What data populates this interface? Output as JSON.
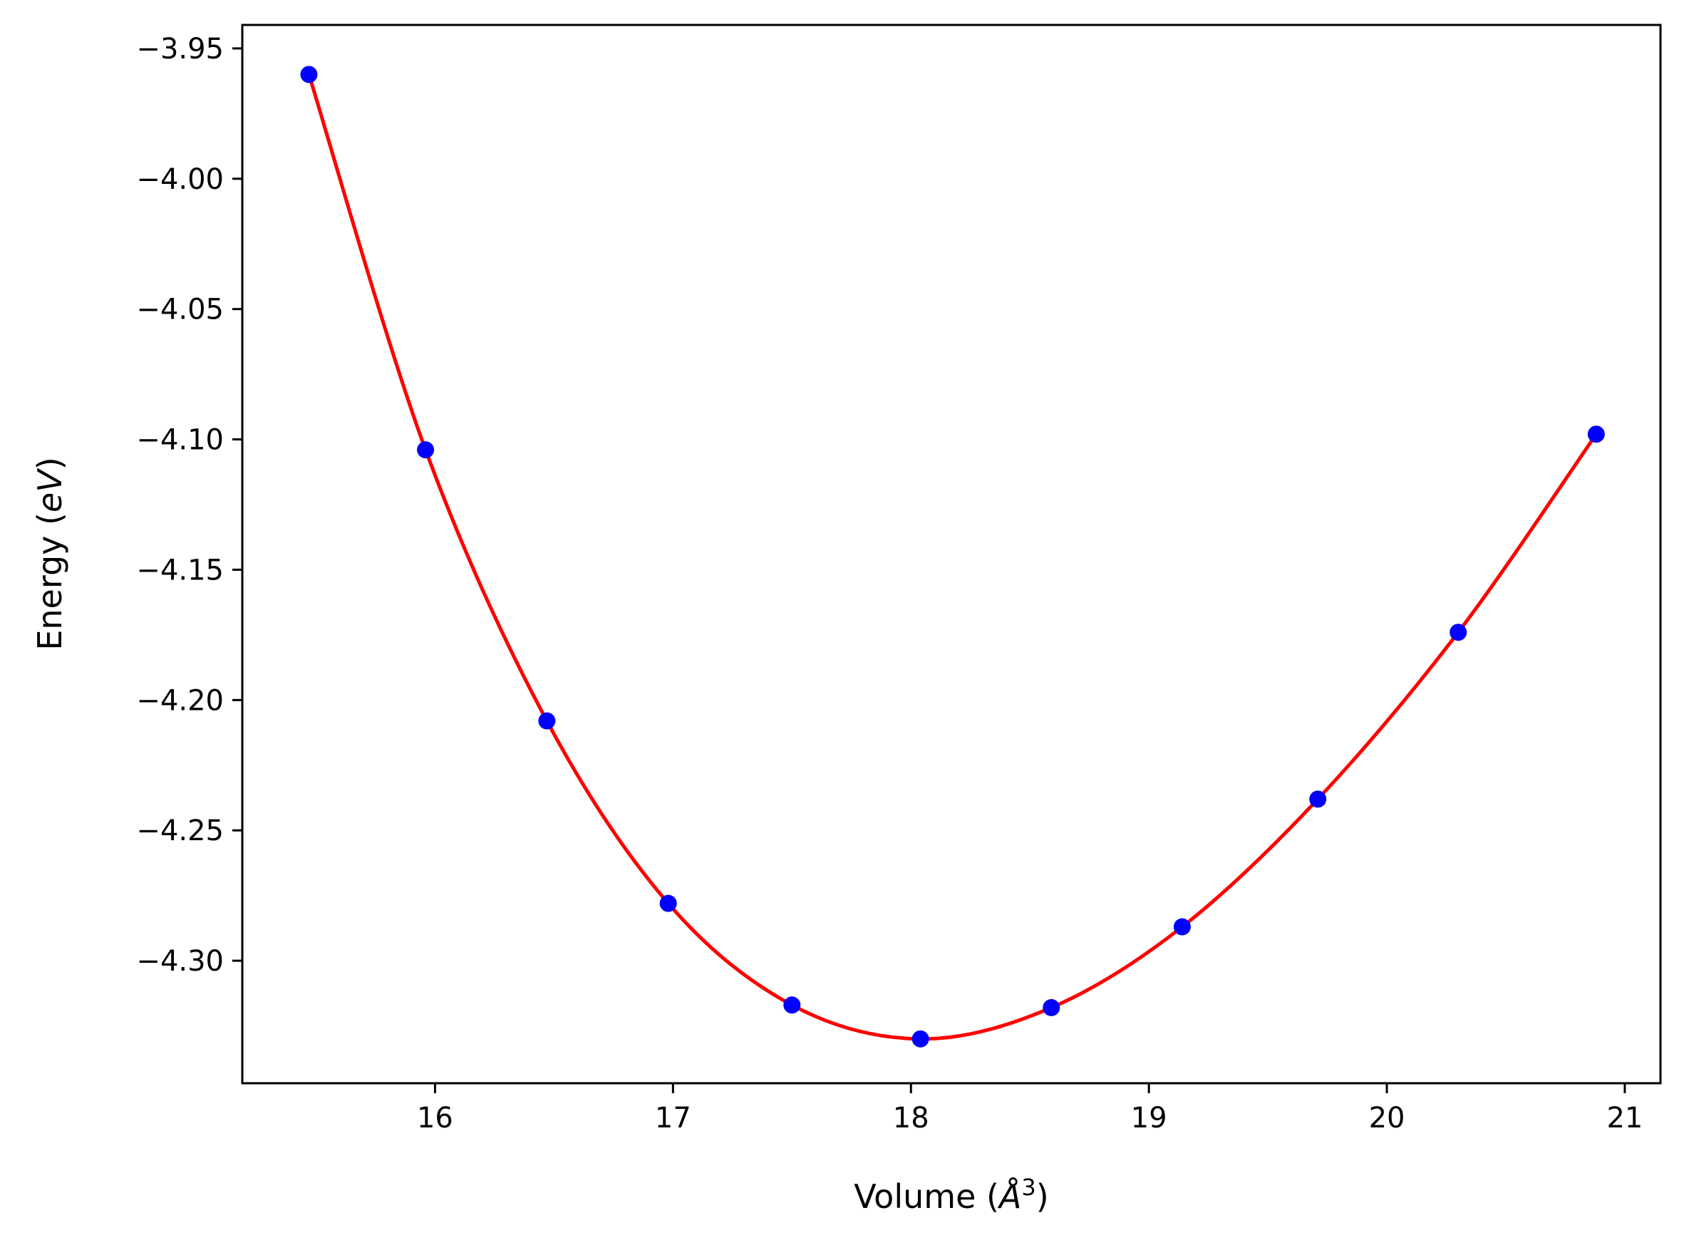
{
  "chart_data": {
    "type": "line",
    "title": "",
    "xlabel_parts": [
      "Volume (",
      "Å",
      "3",
      ")"
    ],
    "ylabel_parts": [
      "Energy (",
      "eV",
      ")"
    ],
    "xlim": [
      15.19,
      21.15
    ],
    "ylim": [
      -4.347,
      -3.941
    ],
    "xticks": [
      16,
      17,
      18,
      19,
      20,
      21
    ],
    "xtick_labels": [
      "16",
      "17",
      "18",
      "19",
      "20",
      "21"
    ],
    "yticks": [
      -3.95,
      -4.0,
      -4.05,
      -4.1,
      -4.15,
      -4.2,
      -4.25,
      -4.3
    ],
    "ytick_labels": [
      "−3.95",
      "−4.00",
      "−4.05",
      "−4.10",
      "−4.15",
      "−4.20",
      "−4.25",
      "−4.30"
    ],
    "grid": false,
    "legend": "none",
    "series": [
      {
        "kind": "points",
        "color": "#0000ff",
        "x": [
          15.47,
          15.96,
          16.47,
          16.98,
          17.5,
          18.04,
          18.59,
          19.14,
          19.71,
          20.3,
          20.88
        ],
        "y": [
          -3.96,
          -4.104,
          -4.208,
          -4.278,
          -4.317,
          -4.33,
          -4.318,
          -4.287,
          -4.238,
          -4.174,
          -4.098
        ]
      },
      {
        "kind": "fit-line",
        "color": "#ff0000",
        "x": [
          15.47,
          15.96,
          16.47,
          16.98,
          17.5,
          18.04,
          18.59,
          19.14,
          19.71,
          20.3,
          20.88
        ],
        "y": [
          -3.96,
          -4.104,
          -4.208,
          -4.278,
          -4.317,
          -4.33,
          -4.318,
          -4.287,
          -4.238,
          -4.174,
          -4.098
        ]
      }
    ]
  }
}
